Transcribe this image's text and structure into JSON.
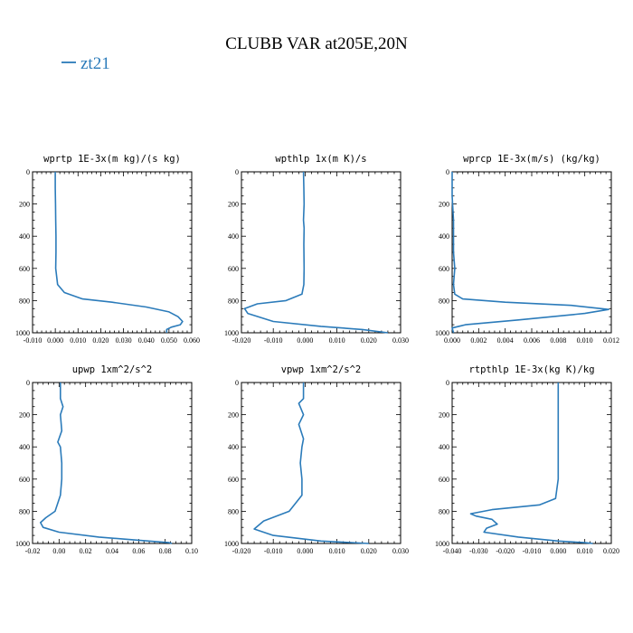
{
  "figure": {
    "title": "CLUBB VAR at205E,20N",
    "legend": [
      {
        "label": "zt21",
        "color": "#2b7bba"
      }
    ]
  },
  "chart_data": [
    {
      "type": "line",
      "title": "wprtp  1E-3x(m kg)/(s kg)",
      "xlim": [
        -0.01,
        0.06
      ],
      "xticks": [
        -0.01,
        0.0,
        0.01,
        0.02,
        0.03,
        0.04,
        0.05,
        0.06
      ],
      "xtick_labels": [
        "-0.010",
        "0.000",
        "0.010",
        "0.020",
        "0.030",
        "0.040",
        "0.050",
        "0.060"
      ],
      "ylim": [
        0,
        1000
      ],
      "y_inverted": true,
      "yticks": [
        0,
        200,
        400,
        600,
        800,
        1000
      ],
      "ytick_labels": [
        "0",
        "200",
        "400",
        "600",
        "800",
        "1000"
      ],
      "series": [
        {
          "name": "zt21",
          "color": "#2b7bba",
          "x": [
            0.0,
            0.0,
            0.0001,
            0.0002,
            0.0003,
            0.0003,
            0.0002,
            0.001,
            0.004,
            0.012,
            0.025,
            0.04,
            0.05,
            0.054,
            0.056,
            0.055,
            0.051,
            0.049,
            0.049
          ],
          "y": [
            0,
            100,
            200,
            300,
            400,
            500,
            600,
            700,
            750,
            790,
            810,
            840,
            870,
            900,
            930,
            950,
            965,
            980,
            1000
          ]
        }
      ]
    },
    {
      "type": "line",
      "title": "wpthlp  1x(m K)/s",
      "xlim": [
        -0.02,
        0.03
      ],
      "xticks": [
        -0.02,
        -0.01,
        0.0,
        0.01,
        0.02,
        0.03
      ],
      "xtick_labels": [
        "-0.020",
        "-0.010",
        "0.000",
        "0.010",
        "0.020",
        "0.030"
      ],
      "ylim": [
        0,
        1000
      ],
      "y_inverted": true,
      "yticks": [
        0,
        200,
        400,
        600,
        800,
        1000
      ],
      "ytick_labels": [
        "0",
        "200",
        "400",
        "600",
        "800",
        "1000"
      ],
      "series": [
        {
          "name": "zt21",
          "color": "#2b7bba",
          "x": [
            -0.0005,
            -0.0004,
            -0.0003,
            -0.0005,
            -0.0003,
            -0.0004,
            -0.0003,
            -0.0004,
            -0.001,
            -0.006,
            -0.015,
            -0.019,
            -0.018,
            -0.01,
            0.005,
            0.018,
            0.026
          ],
          "y": [
            0,
            100,
            200,
            300,
            350,
            450,
            600,
            700,
            760,
            800,
            820,
            850,
            880,
            930,
            960,
            980,
            1000
          ]
        }
      ]
    },
    {
      "type": "line",
      "title": "wprcp  1E-3x(m/s) (kg/kg)",
      "xlim": [
        0.0,
        0.012
      ],
      "xticks": [
        0.0,
        0.002,
        0.004,
        0.006,
        0.008,
        0.01,
        0.012
      ],
      "xtick_labels": [
        "0.000",
        "0.002",
        "0.004",
        "0.006",
        "0.008",
        "0.010",
        "0.012"
      ],
      "ylim": [
        0,
        1000
      ],
      "y_inverted": true,
      "yticks": [
        0,
        200,
        400,
        600,
        800,
        1000
      ],
      "ytick_labels": [
        "0",
        "200",
        "400",
        "600",
        "800",
        "1000"
      ],
      "series": [
        {
          "name": "zt21",
          "color": "#2b7bba",
          "x": [
            0.0,
            0.0,
            0.0001,
            0.0001,
            0.0001,
            0.0001,
            0.0002,
            0.0001,
            0.0002,
            0.0008,
            0.004,
            0.009,
            0.0118,
            0.01,
            0.005,
            0.001,
            0.0,
            0.0001
          ],
          "y": [
            0,
            150,
            300,
            380,
            420,
            500,
            600,
            700,
            760,
            790,
            810,
            830,
            855,
            880,
            920,
            950,
            970,
            1000
          ]
        }
      ]
    },
    {
      "type": "line",
      "title": "upwp  1xm^2/s^2",
      "xlim": [
        -0.02,
        0.1
      ],
      "xticks": [
        -0.02,
        0.0,
        0.02,
        0.04,
        0.06,
        0.08,
        0.1
      ],
      "xtick_labels": [
        "-0.02",
        "0.00",
        "0.02",
        "0.04",
        "0.06",
        "0.08",
        "0.10"
      ],
      "ylim": [
        0,
        1000
      ],
      "y_inverted": true,
      "yticks": [
        0,
        200,
        400,
        600,
        800,
        1000
      ],
      "ytick_labels": [
        "0",
        "200",
        "400",
        "600",
        "800",
        "1000"
      ],
      "series": [
        {
          "name": "zt21",
          "color": "#2b7bba",
          "x": [
            0.001,
            0.001,
            0.003,
            0.001,
            0.002,
            -0.001,
            0.001,
            0.002,
            0.002,
            0.001,
            -0.003,
            -0.01,
            -0.014,
            -0.012,
            0.0,
            0.03,
            0.06,
            0.083,
            0.085
          ],
          "y": [
            0,
            100,
            150,
            200,
            300,
            370,
            400,
            500,
            600,
            700,
            800,
            840,
            870,
            900,
            930,
            960,
            980,
            995,
            1000
          ]
        }
      ]
    },
    {
      "type": "line",
      "title": "vpwp  1xm^2/s^2",
      "xlim": [
        -0.02,
        0.03
      ],
      "xticks": [
        -0.02,
        -0.01,
        0.0,
        0.01,
        0.02,
        0.03
      ],
      "xtick_labels": [
        "-0.020",
        "-0.010",
        "0.000",
        "0.010",
        "0.020",
        "0.030"
      ],
      "ylim": [
        0,
        1000
      ],
      "y_inverted": true,
      "yticks": [
        0,
        200,
        400,
        600,
        800,
        1000
      ],
      "ytick_labels": [
        "0",
        "200",
        "400",
        "600",
        "800",
        "1000"
      ],
      "series": [
        {
          "name": "zt21",
          "color": "#2b7bba",
          "x": [
            -0.0005,
            -0.0005,
            -0.002,
            -0.0005,
            -0.002,
            -0.0005,
            -0.001,
            -0.0015,
            -0.001,
            -0.001,
            -0.005,
            -0.013,
            -0.016,
            -0.01,
            0.005,
            0.02
          ],
          "y": [
            0,
            100,
            130,
            200,
            260,
            350,
            400,
            500,
            600,
            700,
            800,
            860,
            910,
            950,
            985,
            1000
          ]
        }
      ]
    },
    {
      "type": "line",
      "title": "rtpthlp  1E-3x(kg K)/kg",
      "xlim": [
        -0.04,
        0.02
      ],
      "xticks": [
        -0.04,
        -0.03,
        -0.02,
        -0.01,
        0.0,
        0.01,
        0.02
      ],
      "xtick_labels": [
        "-0.040",
        "-0.030",
        "-0.020",
        "-0.010",
        "0.000",
        "0.010",
        "0.020"
      ],
      "ylim": [
        0,
        1000
      ],
      "y_inverted": true,
      "yticks": [
        0,
        200,
        400,
        600,
        800,
        1000
      ],
      "ytick_labels": [
        "0",
        "200",
        "400",
        "600",
        "800",
        "1000"
      ],
      "series": [
        {
          "name": "zt21",
          "color": "#2b7bba",
          "x": [
            0.0,
            0.0,
            0.0,
            0.0,
            0.0,
            0.0,
            -0.001,
            -0.007,
            -0.025,
            -0.033,
            -0.031,
            -0.025,
            -0.023,
            -0.027,
            -0.028,
            -0.015,
            0.0,
            0.01,
            0.013
          ],
          "y": [
            0,
            100,
            200,
            300,
            400,
            600,
            720,
            760,
            790,
            815,
            830,
            850,
            880,
            905,
            930,
            960,
            985,
            995,
            1000
          ]
        }
      ]
    }
  ]
}
